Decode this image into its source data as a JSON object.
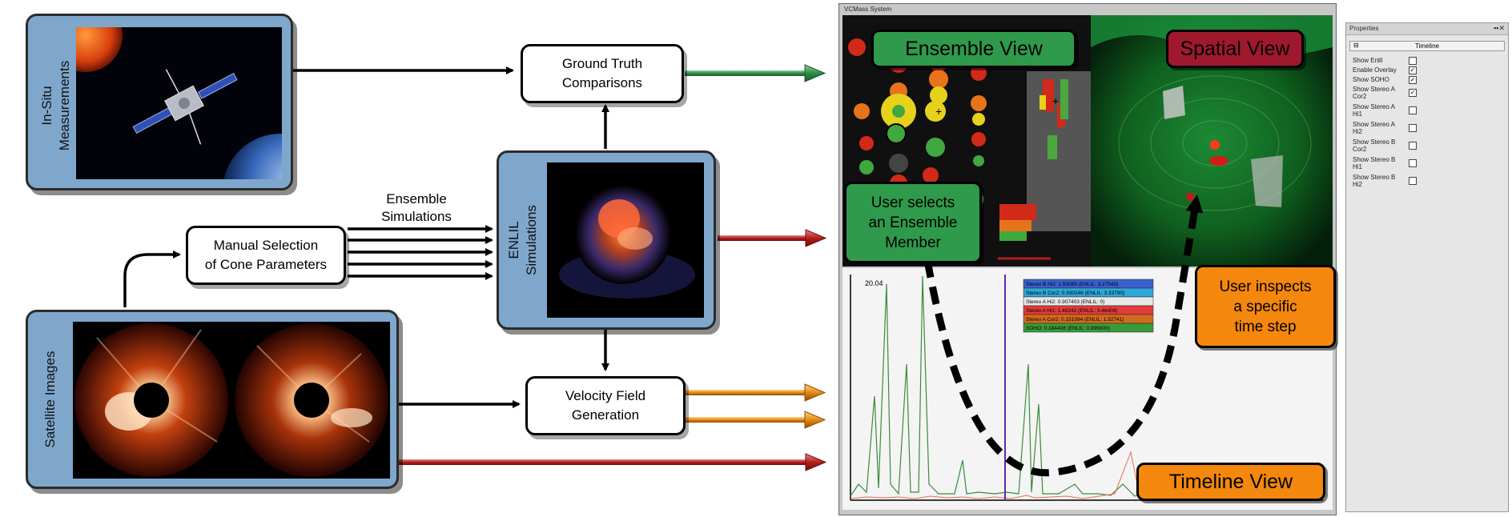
{
  "panels": {
    "in_situ": "In-Situ\nMeasurements",
    "satellite": "Satellite Images",
    "enlil": "ENLIL\nSimulations"
  },
  "boxes": {
    "ground_truth": "Ground Truth\nComparisons",
    "manual_selection": "Manual Selection\nof Cone Parameters",
    "velocity_field": "Velocity Field\nGeneration"
  },
  "labels": {
    "ensemble_simulations": "Ensemble\nSimulations"
  },
  "screenshot": {
    "window_title": "VCMass System",
    "ensemble_view": "Ensemble View",
    "spatial_view": "Spatial View",
    "timeline_view": "Timeline View",
    "user_selects": "User selects\nan Ensemble\nMember",
    "user_inspects": "User inspects\na specific\ntime step",
    "timeline_value": "20.04",
    "legend_rows": [
      {
        "text": "Stereo B Hi2:  1.50085 (ENLIL: 3.27543)",
        "color": "#3a5fcf"
      },
      {
        "text": "Stereo B Cor2: 0.930246 (ENLIL: 3.33790)",
        "color": "#2fa7d8"
      },
      {
        "text": "Stereo A Hi2:  0.907403 (ENLIL: 0)",
        "color": "#e8e8e8"
      },
      {
        "text": "Stereo A Hi1:  1.48242 (ENLIL: 3.46409)",
        "color": "#e23b3b"
      },
      {
        "text": "Stereo A Cor2: 0.151094 (ENLIL: 1.52741)",
        "color": "#d46a1e"
      },
      {
        "text": "SOHO: 0.184408 (ENLIL: 0.999000)",
        "color": "#3a9a3a"
      }
    ]
  },
  "properties": {
    "title": "Properties",
    "header": "Timeline",
    "rows": [
      {
        "label": "Show Enlil",
        "checked": false
      },
      {
        "label": "Enable Overlay",
        "checked": true
      },
      {
        "label": "Show SOHO",
        "checked": true
      },
      {
        "label": "Show Stereo A\nCor2",
        "checked": true
      },
      {
        "label": "Show Stereo A\nHi1",
        "checked": false
      },
      {
        "label": "Show Stereo A\nHi2",
        "checked": false
      },
      {
        "label": "Show Stereo B\nCor2",
        "checked": false
      },
      {
        "label": "Show Stereo B\nHi1",
        "checked": false
      },
      {
        "label": "Show Stereo B\nHi2",
        "checked": false
      }
    ]
  },
  "colors": {
    "panel_blue": "#7fa7cc",
    "tag_green": "#2f9a4b",
    "tag_red": "#a0182e",
    "tag_orange": "#f4870e",
    "arrow_green": "#3e9a55",
    "arrow_red": "#b51d1d",
    "arrow_orange": "#e88a10"
  }
}
